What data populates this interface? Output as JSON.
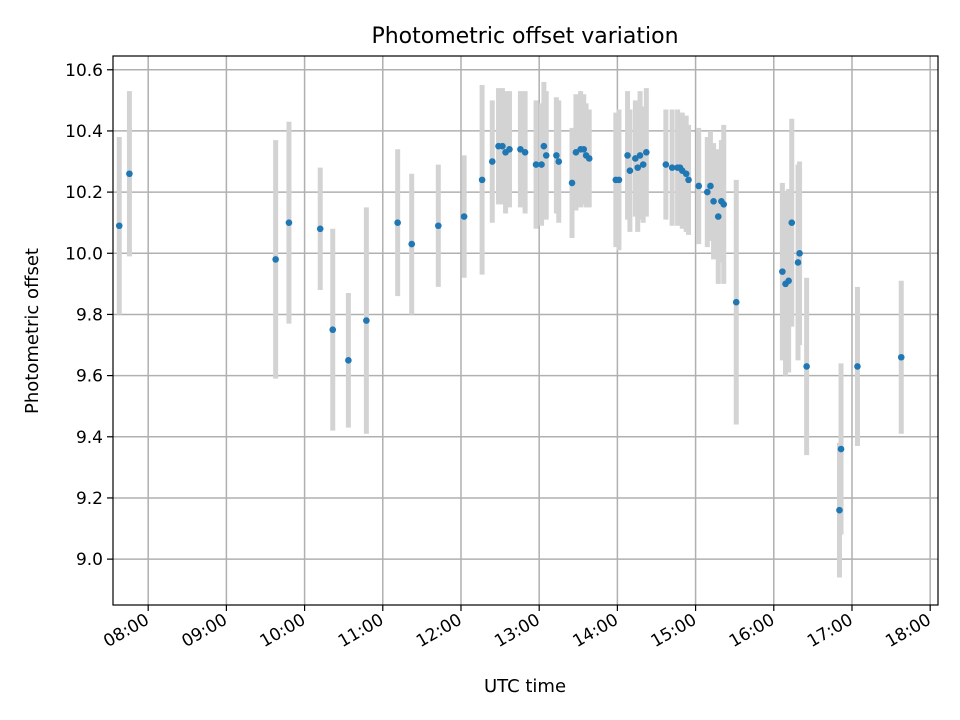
{
  "chart_data": {
    "type": "scatter",
    "title": "Photometric offset variation",
    "xlabel": "UTC time",
    "ylabel": "Photometric offset",
    "x_unit": "hours (UTC)",
    "xlim": [
      7.55,
      18.1
    ],
    "ylim": [
      8.85,
      10.645
    ],
    "grid": true,
    "x_ticks": [
      {
        "value": 8,
        "label": "08:00"
      },
      {
        "value": 9,
        "label": "09:00"
      },
      {
        "value": 10,
        "label": "10:00"
      },
      {
        "value": 11,
        "label": "11:00"
      },
      {
        "value": 12,
        "label": "12:00"
      },
      {
        "value": 13,
        "label": "13:00"
      },
      {
        "value": 14,
        "label": "14:00"
      },
      {
        "value": 15,
        "label": "15:00"
      },
      {
        "value": 16,
        "label": "16:00"
      },
      {
        "value": 17,
        "label": "17:00"
      },
      {
        "value": 18,
        "label": "18:00"
      }
    ],
    "y_ticks": [
      {
        "value": 9.0,
        "label": "9.0"
      },
      {
        "value": 9.2,
        "label": "9.2"
      },
      {
        "value": 9.4,
        "label": "9.4"
      },
      {
        "value": 9.6,
        "label": "9.6"
      },
      {
        "value": 9.8,
        "label": "9.8"
      },
      {
        "value": 10.0,
        "label": "10.0"
      },
      {
        "value": 10.2,
        "label": "10.2"
      },
      {
        "value": 10.4,
        "label": "10.4"
      },
      {
        "value": 10.6,
        "label": "10.6"
      }
    ],
    "colors": {
      "points": "#1f77b4",
      "error_bars": "#d3d3d3",
      "grid": "#b0b0b0"
    },
    "series": [
      {
        "x": [
          7.63,
          7.76,
          9.63,
          9.8,
          10.2,
          10.36,
          10.56,
          10.79,
          11.19,
          11.37,
          11.71,
          12.04,
          12.27,
          12.4,
          12.48,
          12.53,
          12.57,
          12.62,
          12.76,
          12.82,
          12.96,
          13.03,
          13.06,
          13.09,
          13.22,
          13.25,
          13.42,
          13.47,
          13.53,
          13.57,
          13.6,
          13.64,
          13.98,
          14.02,
          14.13,
          14.16,
          14.23,
          14.26,
          14.29,
          14.33,
          14.37,
          14.62,
          14.7,
          14.77,
          14.8,
          14.83,
          14.88,
          14.91,
          15.04,
          15.15,
          15.19,
          15.23,
          15.29,
          15.33,
          15.36,
          15.52,
          16.11,
          16.15,
          16.19,
          16.23,
          16.31,
          16.33,
          16.42,
          16.84,
          16.86,
          17.07,
          17.63
        ],
        "y": [
          10.09,
          10.26,
          9.98,
          10.1,
          10.08,
          9.75,
          9.65,
          9.78,
          10.1,
          10.03,
          10.09,
          10.12,
          10.24,
          10.3,
          10.35,
          10.35,
          10.33,
          10.34,
          10.34,
          10.33,
          10.29,
          10.29,
          10.35,
          10.32,
          10.32,
          10.3,
          10.23,
          10.33,
          10.34,
          10.34,
          10.32,
          10.31,
          10.24,
          10.24,
          10.32,
          10.27,
          10.31,
          10.28,
          10.32,
          10.29,
          10.33,
          10.29,
          10.28,
          10.28,
          10.28,
          10.27,
          10.26,
          10.24,
          10.22,
          10.2,
          10.22,
          10.17,
          10.12,
          10.17,
          10.16,
          9.84,
          9.94,
          9.9,
          9.91,
          10.1,
          9.97,
          10.0,
          9.63,
          9.16,
          9.36,
          9.63,
          9.66
        ],
        "yerr": [
          0.29,
          0.27,
          0.39,
          0.33,
          0.2,
          0.33,
          0.22,
          0.37,
          0.24,
          0.23,
          0.2,
          0.2,
          0.31,
          0.2,
          0.19,
          0.19,
          0.2,
          0.19,
          0.19,
          0.2,
          0.21,
          0.2,
          0.21,
          0.21,
          0.19,
          0.2,
          0.18,
          0.19,
          0.19,
          0.18,
          0.17,
          0.16,
          0.22,
          0.23,
          0.21,
          0.2,
          0.19,
          0.21,
          0.21,
          0.19,
          0.21,
          0.18,
          0.19,
          0.19,
          0.18,
          0.19,
          0.19,
          0.18,
          0.19,
          0.18,
          0.18,
          0.19,
          0.22,
          0.2,
          0.26,
          0.4,
          0.29,
          0.3,
          0.3,
          0.34,
          0.32,
          0.3,
          0.29,
          0.22,
          0.28,
          0.26,
          0.25
        ]
      }
    ]
  }
}
